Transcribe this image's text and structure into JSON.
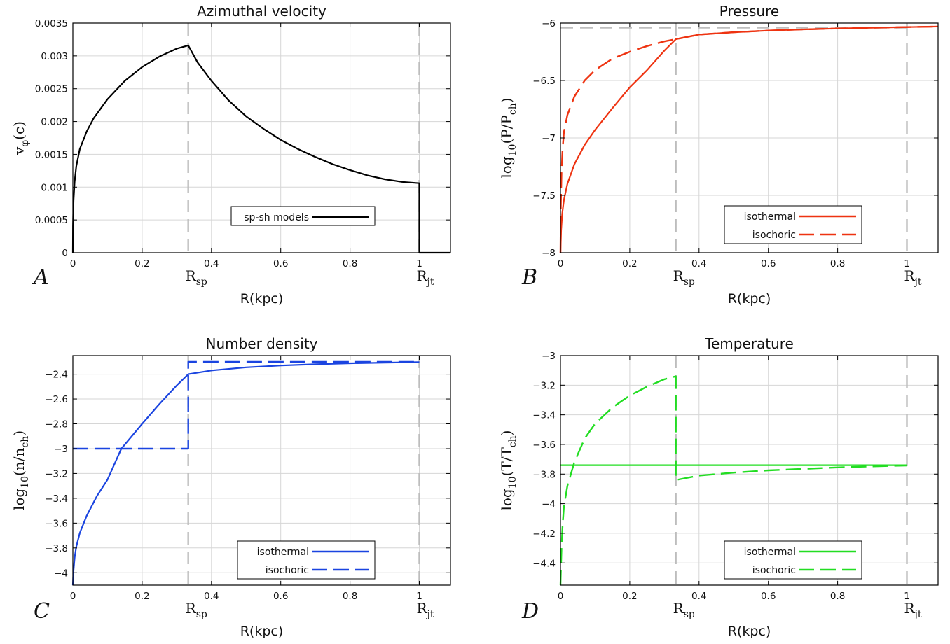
{
  "chart_data": [
    {
      "panel": "A",
      "type": "line",
      "title": "Azimuthal velocity",
      "xlabel": "R(kpc)",
      "ylabel": "vφ(c)",
      "ylabel_main": "v",
      "ylabel_sub": "φ",
      "ylabel_tail": "(c)",
      "xlim": [
        0,
        1.09
      ],
      "ylim": [
        0,
        0.0035
      ],
      "xticks": [
        0,
        0.2,
        0.4,
        0.6,
        0.8,
        1
      ],
      "xtick_labels": [
        "0",
        "0.2",
        "0.4",
        "0.6",
        "0.8",
        "1"
      ],
      "yticks": [
        0,
        0.0005,
        0.001,
        0.0015,
        0.002,
        0.0025,
        0.003,
        0.0035
      ],
      "ytick_labels": [
        "0",
        "0.0005",
        "0.001",
        "0.0015",
        "0.002",
        "0.0025",
        "0.003",
        "0.0035"
      ],
      "vlines": [
        {
          "x": 0.333,
          "main": "R",
          "sub": "sp"
        },
        {
          "x": 1.0,
          "main": "R",
          "sub": "jt"
        }
      ],
      "hlines": [],
      "legend_position": "bottom-right",
      "series": [
        {
          "name": "sp-sh models",
          "color": "#000000",
          "dash": "solid",
          "points": [
            [
              0,
              0
            ],
            [
              0.0005,
              0.0004
            ],
            [
              0.002,
              0.0008
            ],
            [
              0.005,
              0.00108
            ],
            [
              0.01,
              0.00132
            ],
            [
              0.02,
              0.00158
            ],
            [
              0.04,
              0.00185
            ],
            [
              0.06,
              0.00205
            ],
            [
              0.1,
              0.00234
            ],
            [
              0.15,
              0.00262
            ],
            [
              0.2,
              0.00283
            ],
            [
              0.25,
              0.00299
            ],
            [
              0.3,
              0.00311
            ],
            [
              0.333,
              0.00316
            ],
            [
              0.36,
              0.0029
            ],
            [
              0.4,
              0.00262
            ],
            [
              0.45,
              0.00232
            ],
            [
              0.5,
              0.00208
            ],
            [
              0.55,
              0.00189
            ],
            [
              0.6,
              0.00172
            ],
            [
              0.65,
              0.00158
            ],
            [
              0.7,
              0.00146
            ],
            [
              0.75,
              0.00135
            ],
            [
              0.8,
              0.00126
            ],
            [
              0.85,
              0.00118
            ],
            [
              0.9,
              0.00112
            ],
            [
              0.95,
              0.00108
            ],
            [
              1.0,
              0.00106
            ],
            [
              1.0,
              0
            ],
            [
              1.09,
              0
            ]
          ]
        }
      ]
    },
    {
      "panel": "B",
      "type": "line",
      "title": "Pressure",
      "xlabel": "R(kpc)",
      "ylabel": "log10(P/Pch)",
      "ylabel_main": "log",
      "ylabel_sub": "10",
      "ylabel_tail": "(P/P",
      "ylabel_sub2": "ch",
      "ylabel_end": ")",
      "xlim": [
        0,
        1.09
      ],
      "ylim": [
        -8,
        -6
      ],
      "xticks": [
        0,
        0.2,
        0.4,
        0.6,
        0.8,
        1
      ],
      "xtick_labels": [
        "0",
        "0.2",
        "0.4",
        "0.6",
        "0.8",
        "1"
      ],
      "yticks": [
        -8,
        -7.5,
        -7,
        -6.5,
        -6
      ],
      "ytick_labels": [
        "−8",
        "−7.5",
        "−7",
        "−6.5",
        "−6"
      ],
      "vlines": [
        {
          "x": 0.333,
          "main": "R",
          "sub": "sp"
        },
        {
          "x": 1.0,
          "main": "R",
          "sub": "jt"
        }
      ],
      "hlines": [
        {
          "y": -6.04,
          "x1": 0,
          "x2": 1.0
        }
      ],
      "legend_position": "bottom-right",
      "series": [
        {
          "name": "isothermal",
          "color": "#ee3311",
          "dash": "solid",
          "points": [
            [
              0,
              -8
            ],
            [
              0.002,
              -7.8
            ],
            [
              0.005,
              -7.66
            ],
            [
              0.01,
              -7.54
            ],
            [
              0.02,
              -7.4
            ],
            [
              0.04,
              -7.23
            ],
            [
              0.07,
              -7.06
            ],
            [
              0.1,
              -6.93
            ],
            [
              0.15,
              -6.74
            ],
            [
              0.2,
              -6.56
            ],
            [
              0.25,
              -6.41
            ],
            [
              0.3,
              -6.24
            ],
            [
              0.333,
              -6.14
            ],
            [
              0.4,
              -6.1
            ],
            [
              0.5,
              -6.08
            ],
            [
              0.6,
              -6.065
            ],
            [
              0.7,
              -6.055
            ],
            [
              0.8,
              -6.047
            ],
            [
              0.9,
              -6.04
            ],
            [
              1.0,
              -6.035
            ],
            [
              1.09,
              -6.03
            ]
          ]
        },
        {
          "name": "isochoric",
          "color": "#ee3311",
          "dash": "long",
          "points": [
            [
              0,
              -8
            ],
            [
              0.001,
              -7.6
            ],
            [
              0.003,
              -7.3
            ],
            [
              0.006,
              -7.1
            ],
            [
              0.01,
              -6.95
            ],
            [
              0.02,
              -6.8
            ],
            [
              0.04,
              -6.64
            ],
            [
              0.07,
              -6.5
            ],
            [
              0.1,
              -6.41
            ],
            [
              0.15,
              -6.31
            ],
            [
              0.2,
              -6.25
            ],
            [
              0.25,
              -6.2
            ],
            [
              0.3,
              -6.16
            ],
            [
              0.333,
              -6.14
            ],
            [
              0.4,
              -6.1
            ],
            [
              0.5,
              -6.08
            ],
            [
              0.6,
              -6.065
            ],
            [
              0.7,
              -6.055
            ],
            [
              0.8,
              -6.047
            ],
            [
              0.9,
              -6.04
            ],
            [
              1.0,
              -6.035
            ],
            [
              1.09,
              -6.03
            ]
          ]
        }
      ]
    },
    {
      "panel": "C",
      "type": "line",
      "title": "Number density",
      "xlabel": "R(kpc)",
      "ylabel": "log10(n/nch)",
      "ylabel_main": "log",
      "ylabel_sub": "10",
      "ylabel_tail": "(n/n",
      "ylabel_sub2": "ch",
      "ylabel_end": ")",
      "xlim": [
        0,
        1.09
      ],
      "ylim": [
        -4.1,
        -2.25
      ],
      "xticks": [
        0,
        0.2,
        0.4,
        0.6,
        0.8,
        1
      ],
      "xtick_labels": [
        "0",
        "0.2",
        "0.4",
        "0.6",
        "0.8",
        "1"
      ],
      "yticks": [
        -4,
        -3.8,
        -3.6,
        -3.4,
        -3.2,
        -3,
        -2.8,
        -2.6,
        -2.4
      ],
      "ytick_labels": [
        "−4",
        "−3.8",
        "−3.6",
        "−3.4",
        "−3.2",
        "−3",
        "−2.8",
        "−2.6",
        "−2.4"
      ],
      "vlines": [
        {
          "x": 0.333,
          "main": "R",
          "sub": "sp"
        },
        {
          "x": 1.0,
          "main": "R",
          "sub": "jt"
        }
      ],
      "hlines": [],
      "legend_position": "bottom-right",
      "series": [
        {
          "name": "isothermal",
          "color": "#1a44e0",
          "dash": "solid",
          "points": [
            [
              0,
              -4.1
            ],
            [
              0.002,
              -3.98
            ],
            [
              0.005,
              -3.88
            ],
            [
              0.01,
              -3.79
            ],
            [
              0.02,
              -3.68
            ],
            [
              0.04,
              -3.54
            ],
            [
              0.07,
              -3.38
            ],
            [
              0.1,
              -3.25
            ],
            [
              0.14,
              -3.0
            ],
            [
              0.2,
              -2.8
            ],
            [
              0.25,
              -2.64
            ],
            [
              0.3,
              -2.49
            ],
            [
              0.333,
              -2.4
            ],
            [
              0.4,
              -2.37
            ],
            [
              0.5,
              -2.345
            ],
            [
              0.6,
              -2.33
            ],
            [
              0.7,
              -2.32
            ],
            [
              0.8,
              -2.312
            ],
            [
              0.9,
              -2.307
            ],
            [
              1.0,
              -2.303
            ]
          ]
        },
        {
          "name": "isochoric",
          "color": "#1a44e0",
          "dash": "long",
          "points": [
            [
              0,
              -3.0
            ],
            [
              0.333,
              -3.0
            ],
            [
              0.333,
              -2.3
            ],
            [
              1.0,
              -2.3
            ]
          ]
        }
      ]
    },
    {
      "panel": "D",
      "type": "line",
      "title": "Temperature",
      "xlabel": "R(kpc)",
      "ylabel": "log10(T/Tch)",
      "ylabel_main": "log",
      "ylabel_sub": "10",
      "ylabel_tail": "(T/T",
      "ylabel_sub2": "ch",
      "ylabel_end": ")",
      "xlim": [
        0,
        1.09
      ],
      "ylim": [
        -4.55,
        -3.0
      ],
      "xticks": [
        0,
        0.2,
        0.4,
        0.6,
        0.8,
        1
      ],
      "xtick_labels": [
        "0",
        "0.2",
        "0.4",
        "0.6",
        "0.8",
        "1"
      ],
      "yticks": [
        -4.4,
        -4.2,
        -4,
        -3.8,
        -3.6,
        -3.4,
        -3.2,
        -3
      ],
      "ytick_labels": [
        "−4.4",
        "−4.2",
        "−4",
        "−3.8",
        "−3.6",
        "−3.4",
        "−3.2",
        "−3"
      ],
      "vlines": [
        {
          "x": 0.333,
          "main": "R",
          "sub": "sp"
        },
        {
          "x": 1.0,
          "main": "R",
          "sub": "jt"
        }
      ],
      "hlines": [],
      "legend_position": "bottom-right",
      "series": [
        {
          "name": "isothermal",
          "color": "#22dd22",
          "dash": "solid",
          "points": [
            [
              0,
              -3.74
            ],
            [
              1.0,
              -3.74
            ]
          ]
        },
        {
          "name": "isochoric",
          "color": "#22dd22",
          "dash": "long",
          "points": [
            [
              0,
              -4.55
            ],
            [
              0.003,
              -4.3
            ],
            [
              0.006,
              -4.15
            ],
            [
              0.01,
              -4.02
            ],
            [
              0.02,
              -3.88
            ],
            [
              0.04,
              -3.72
            ],
            [
              0.07,
              -3.56
            ],
            [
              0.1,
              -3.46
            ],
            [
              0.15,
              -3.35
            ],
            [
              0.2,
              -3.27
            ],
            [
              0.25,
              -3.21
            ],
            [
              0.3,
              -3.16
            ],
            [
              0.333,
              -3.14
            ],
            [
              0.333,
              -3.84
            ],
            [
              0.4,
              -3.81
            ],
            [
              0.5,
              -3.79
            ],
            [
              0.6,
              -3.775
            ],
            [
              0.7,
              -3.765
            ],
            [
              0.8,
              -3.755
            ],
            [
              0.9,
              -3.748
            ],
            [
              1.0,
              -3.742
            ]
          ]
        }
      ]
    }
  ]
}
